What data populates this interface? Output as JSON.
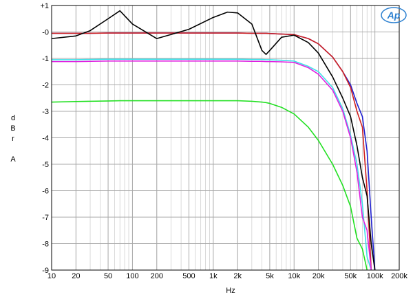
{
  "chart_data": {
    "type": "line",
    "x_label": "Hz",
    "y_label": "dBr A",
    "logo": "Ap",
    "xscale": "log",
    "grid": true,
    "xlim": [
      10,
      200000
    ],
    "xticks": [
      10,
      20,
      50,
      100,
      200,
      500,
      {
        "value": 1000,
        "label": "1k"
      },
      {
        "value": 2000,
        "label": "2k"
      },
      {
        "value": 5000,
        "label": "5k"
      },
      {
        "value": 10000,
        "label": "10k"
      },
      {
        "value": 20000,
        "label": "20k"
      },
      {
        "value": 50000,
        "label": "50k"
      },
      {
        "value": 100000,
        "label": "100k"
      },
      {
        "value": 200000,
        "label": "200k"
      }
    ],
    "ylim": [
      -9,
      1
    ],
    "yticks": [
      {
        "value": 1,
        "label": "+1"
      },
      {
        "value": 0,
        "label": "-0"
      },
      -1,
      -2,
      -3,
      -4,
      -5,
      -6,
      -7,
      -8,
      -9
    ],
    "x": [
      10,
      20,
      30,
      50,
      70,
      100,
      200,
      500,
      1000,
      1500,
      2000,
      3000,
      4000,
      4500,
      5000,
      7000,
      10000,
      15000,
      20000,
      30000,
      40000,
      50000,
      60000,
      70000,
      80000,
      90000,
      100000
    ],
    "series": [
      {
        "color": "#2020d0",
        "values": [
          -0.05,
          -0.05,
          -0.05,
          -0.04,
          -0.04,
          -0.04,
          -0.04,
          -0.04,
          -0.04,
          -0.04,
          -0.04,
          -0.05,
          -0.05,
          -0.05,
          -0.06,
          -0.08,
          -0.1,
          -0.25,
          -0.45,
          -0.95,
          -1.5,
          -2.0,
          -2.7,
          -3.2,
          -4.5,
          -7,
          -9
        ]
      },
      {
        "color": "#d02020",
        "values": [
          -0.05,
          -0.05,
          -0.05,
          -0.04,
          -0.04,
          -0.04,
          -0.04,
          -0.04,
          -0.04,
          -0.04,
          -0.04,
          -0.05,
          -0.05,
          -0.05,
          -0.06,
          -0.08,
          -0.1,
          -0.25,
          -0.45,
          -0.95,
          -1.5,
          -2.1,
          -3.0,
          -3.6,
          -6,
          -9,
          null
        ]
      },
      {
        "color": "#40e0e8",
        "values": [
          -1.05,
          -1.05,
          -1.04,
          -1.03,
          -1.03,
          -1.03,
          -1.03,
          -1.03,
          -1.03,
          -1.03,
          -1.03,
          -1.04,
          -1.04,
          -1.05,
          -1.05,
          -1.07,
          -1.1,
          -1.3,
          -1.5,
          -2.1,
          -2.9,
          -3.9,
          -5.0,
          -6.5,
          -8.5,
          -9,
          null
        ]
      },
      {
        "color": "#e020e0",
        "values": [
          -1.12,
          -1.12,
          -1.11,
          -1.1,
          -1.1,
          -1.1,
          -1.1,
          -1.1,
          -1.1,
          -1.1,
          -1.1,
          -1.11,
          -1.11,
          -1.12,
          -1.12,
          -1.13,
          -1.15,
          -1.35,
          -1.6,
          -2.2,
          -3.0,
          -4.0,
          -5.3,
          -7.0,
          -7.5,
          -9,
          null
        ]
      },
      {
        "color": "#20e020",
        "values": [
          -2.65,
          -2.63,
          -2.62,
          -2.61,
          -2.6,
          -2.6,
          -2.6,
          -2.6,
          -2.6,
          -2.6,
          -2.6,
          -2.62,
          -2.65,
          -2.67,
          -2.7,
          -2.85,
          -3.1,
          -3.6,
          -4.1,
          -5.0,
          -5.8,
          -6.6,
          -7.8,
          -8.2,
          -9,
          null,
          null
        ]
      },
      {
        "color": "#000000",
        "values": [
          -0.25,
          -0.15,
          0.05,
          0.5,
          0.8,
          0.3,
          -0.25,
          0.1,
          0.55,
          0.75,
          0.72,
          0.3,
          -0.7,
          -0.85,
          -0.7,
          -0.2,
          -0.12,
          -0.4,
          -0.8,
          -1.7,
          -2.5,
          -3.2,
          -4.3,
          -5.5,
          -6.2,
          -8,
          -9
        ]
      }
    ]
  }
}
